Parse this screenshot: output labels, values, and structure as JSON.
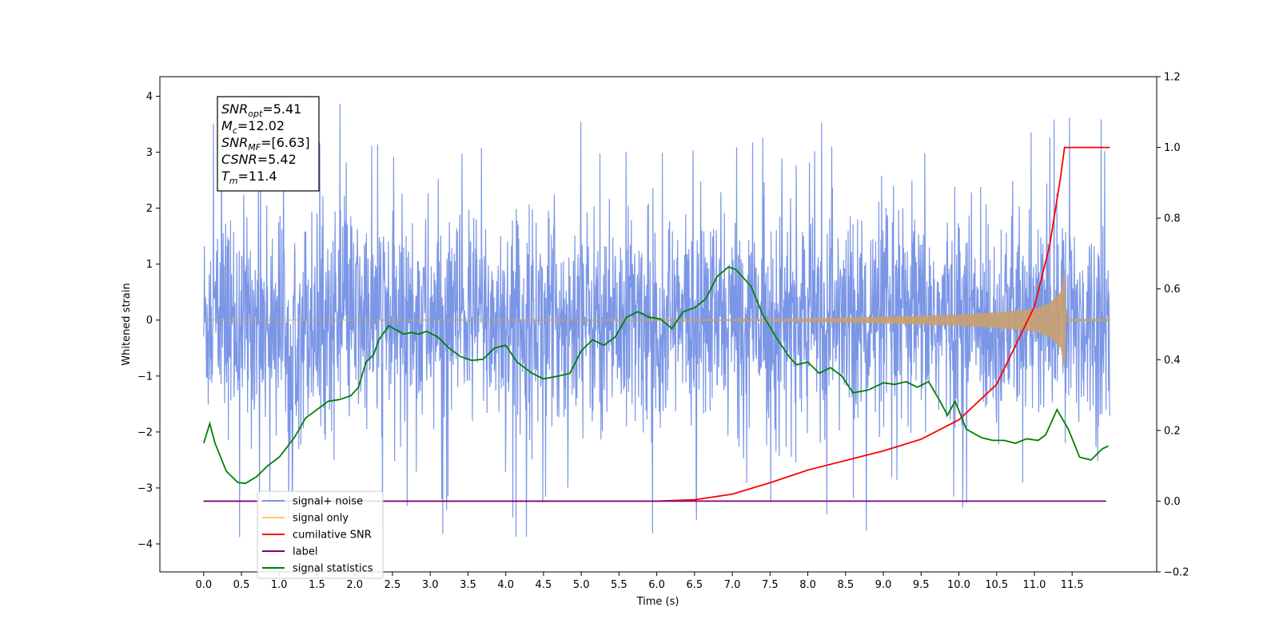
{
  "chart_data": {
    "type": "line",
    "xlabel": "Time (s)",
    "ylabel": "Whitened strain",
    "x_ticks": [
      "0.0",
      "0.5",
      "1.0",
      "1.5",
      "2.0",
      "2.5",
      "3.0",
      "3.5",
      "4.0",
      "4.5",
      "5.0",
      "5.5",
      "6.0",
      "6.5",
      "7.0",
      "7.5",
      "8.0",
      "8.5",
      "9.0",
      "9.5",
      "10.0",
      "10.5",
      "11.0",
      "11.5"
    ],
    "y_left_ticks": [
      "4",
      "3",
      "2",
      "1",
      "0",
      "−1",
      "−2",
      "−3",
      "−4"
    ],
    "y_right_ticks": [
      "1.2",
      "1.0",
      "0.8",
      "0.6",
      "0.4",
      "0.2",
      "0.0",
      "−0.2"
    ],
    "xlim": [
      -0.58,
      12.62
    ],
    "ylim_left": [
      -4.5,
      4.35
    ],
    "ylim_right": [
      -0.2,
      1.2
    ],
    "grid": false,
    "legend_position": "bottom-left",
    "info_box": {
      "lines": [
        {
          "var": "SNR",
          "sub": "opt",
          "value": "=5.41"
        },
        {
          "var": "M",
          "sub": "c",
          "value": "=12.02"
        },
        {
          "var": "SNR",
          "sub": "MF",
          "value": "=[6.63]"
        },
        {
          "var": "CSNR",
          "sub": "",
          "value": "=5.42"
        },
        {
          "var": "T",
          "sub": "m",
          "value": "=11.4"
        }
      ]
    },
    "legend": [
      {
        "label": "signal+ noise",
        "color": "#7b96e6"
      },
      {
        "label": "signal only",
        "color": "#ffc870"
      },
      {
        "label": "cumilative SNR",
        "color": "#ff0000"
      },
      {
        "label": "label",
        "color": "#800080"
      },
      {
        "label": "signal statistics",
        "color": "#008000"
      }
    ],
    "series": [
      {
        "name": "signal+ noise",
        "axis": "left",
        "color": "#7b96e6",
        "x_range": [
          0.0,
          12.0
        ],
        "typical_extent": [
          -2.5,
          2.5
        ],
        "min": -4.1,
        "max": 3.95
      },
      {
        "name": "signal only",
        "axis": "left",
        "color": "#c8a06e",
        "x": [
          0.0,
          7.0,
          7.5,
          8.0,
          9.0,
          10.0,
          10.5,
          11.0,
          11.2,
          11.35,
          11.4,
          11.42,
          12.0
        ],
        "envelope": [
          0.0,
          0.005,
          0.02,
          0.03,
          0.06,
          0.1,
          0.14,
          0.2,
          0.3,
          0.5,
          0.9,
          0.02,
          0.02
        ]
      },
      {
        "name": "cumilative SNR",
        "axis": "right",
        "color": "#ff0000",
        "x": [
          0.0,
          6.0,
          6.5,
          7.0,
          7.5,
          8.0,
          8.5,
          9.0,
          9.5,
          10.0,
          10.5,
          11.0,
          11.2,
          11.35,
          11.4,
          12.0
        ],
        "values": [
          0.0,
          0.0,
          0.004,
          0.02,
          0.052,
          0.088,
          0.115,
          0.142,
          0.175,
          0.23,
          0.33,
          0.55,
          0.72,
          0.92,
          1.0,
          1.0
        ]
      },
      {
        "name": "label",
        "axis": "right",
        "color": "#800080",
        "x": [
          0.0,
          11.95
        ],
        "values": [
          0.0,
          0.0
        ]
      },
      {
        "name": "signal statistics",
        "axis": "left",
        "color": "#008000",
        "x": [
          0.0,
          0.08,
          0.15,
          0.3,
          0.45,
          0.55,
          0.7,
          0.85,
          1.0,
          1.2,
          1.35,
          1.5,
          1.65,
          1.8,
          1.95,
          2.05,
          2.15,
          2.25,
          2.32,
          2.45,
          2.65,
          2.75,
          2.85,
          2.95,
          3.1,
          3.25,
          3.4,
          3.55,
          3.7,
          3.85,
          4.0,
          4.15,
          4.35,
          4.5,
          4.7,
          4.85,
          5.0,
          5.15,
          5.3,
          5.45,
          5.6,
          5.75,
          5.9,
          6.05,
          6.2,
          6.35,
          6.5,
          6.65,
          6.8,
          6.95,
          7.05,
          7.25,
          7.4,
          7.6,
          7.75,
          7.85,
          8.0,
          8.15,
          8.3,
          8.45,
          8.6,
          8.8,
          9.0,
          9.15,
          9.3,
          9.45,
          9.6,
          9.75,
          9.85,
          9.95,
          10.1,
          10.3,
          10.45,
          10.6,
          10.75,
          10.9,
          11.05,
          11.15,
          11.3,
          11.45,
          11.6,
          11.75,
          11.9,
          11.98
        ],
        "values": [
          -2.2,
          -1.85,
          -2.2,
          -2.7,
          -2.9,
          -2.92,
          -2.8,
          -2.6,
          -2.45,
          -2.1,
          -1.75,
          -1.6,
          -1.45,
          -1.42,
          -1.35,
          -1.2,
          -0.75,
          -0.62,
          -0.35,
          -0.1,
          -0.25,
          -0.22,
          -0.25,
          -0.2,
          -0.3,
          -0.5,
          -0.65,
          -0.72,
          -0.7,
          -0.5,
          -0.45,
          -0.75,
          -0.95,
          -1.05,
          -1.0,
          -0.95,
          -0.55,
          -0.35,
          -0.45,
          -0.3,
          0.05,
          0.15,
          0.05,
          0.02,
          -0.15,
          0.15,
          0.22,
          0.38,
          0.78,
          0.95,
          0.9,
          0.6,
          0.1,
          -0.35,
          -0.65,
          -0.8,
          -0.75,
          -0.95,
          -0.85,
          -1.0,
          -1.3,
          -1.25,
          -1.12,
          -1.15,
          -1.1,
          -1.2,
          -1.1,
          -1.45,
          -1.7,
          -1.45,
          -1.95,
          -2.1,
          -2.15,
          -2.15,
          -2.2,
          -2.12,
          -2.15,
          -2.05,
          -1.6,
          -1.95,
          -2.45,
          -2.5,
          -2.3,
          -2.25
        ]
      }
    ]
  }
}
